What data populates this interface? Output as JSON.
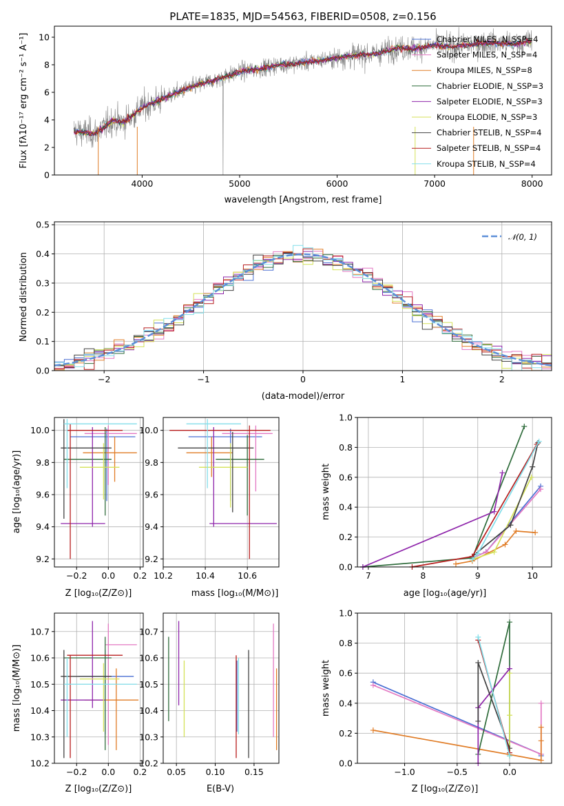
{
  "figure": {
    "title": "PLATE=1835, MJD=54563, FIBERID=0508, z=0.156"
  },
  "colors": {
    "data": "#808080",
    "models": [
      "#4a6fd3",
      "#e377c2",
      "#e07b24",
      "#2e6b3a",
      "#8e24aa",
      "#d4e157",
      "#404040",
      "#b71c1c",
      "#80deea"
    ],
    "normal": "#5b8ed8"
  },
  "chart_data": [
    {
      "id": "spectrum",
      "type": "line",
      "xlabel": "wavelength [Angstrom, rest frame]",
      "ylabel": "Flux [fλ10⁻¹⁷ erg cm⁻² s⁻¹ A⁻¹]",
      "xlim": [
        3100,
        8200
      ],
      "ylim": [
        0,
        10.8
      ],
      "xticks": [
        4000,
        5000,
        6000,
        7000,
        8000
      ],
      "yticks": [
        0,
        2,
        4,
        6,
        8,
        10
      ],
      "grid": false,
      "legend_position": "top-right",
      "continuum": {
        "x": [
          3300,
          3500,
          3600,
          3700,
          3800,
          3900,
          4000,
          4200,
          4400,
          4600,
          4800,
          5000,
          5200,
          5400,
          5600,
          5800,
          6000,
          6200,
          6400,
          6600,
          6800,
          7000,
          7200,
          7400,
          7600,
          7800,
          8000
        ],
        "y": [
          3.2,
          3.0,
          3.4,
          4.0,
          3.8,
          4.3,
          4.9,
          5.5,
          6.1,
          6.6,
          7.0,
          7.5,
          7.7,
          8.0,
          8.1,
          8.3,
          8.5,
          8.7,
          8.8,
          9.2,
          9.2,
          9.4,
          9.3,
          9.5,
          9.6,
          9.5,
          9.7
        ]
      },
      "series": [
        {
          "name": "Chabrier MILES, N_SSP=4"
        },
        {
          "name": "Salpeter MILES, N_SSP=4"
        },
        {
          "name": "Kroupa MILES, N_SSP=8"
        },
        {
          "name": "Chabrier ELODIE, N_SSP=3"
        },
        {
          "name": "Salpeter ELODIE, N_SSP=3"
        },
        {
          "name": "Kroupa ELODIE, N_SSP=3"
        },
        {
          "name": "Chabrier STELIB, N_SSP=4"
        },
        {
          "name": "Salpeter STELIB, N_SSP=4"
        },
        {
          "name": "Kroupa STELIB, N_SSP=4"
        }
      ]
    },
    {
      "id": "residuals",
      "type": "histogram",
      "xlabel": "(data-model)/error",
      "ylabel": "Normed distribution",
      "xlim": [
        -2.5,
        2.5
      ],
      "ylim": [
        0,
        0.51
      ],
      "xticks": [
        -2,
        -1,
        0,
        1,
        2
      ],
      "yticks": [
        0.0,
        0.1,
        0.2,
        0.3,
        0.4,
        0.5
      ],
      "grid": true,
      "legend_position": "top-right",
      "legend_label": "𝒩(0, 1)",
      "bin_width": 0.1
    },
    {
      "id": "age-vs-Z",
      "type": "errorbar",
      "xlabel": "Z [log₁₀(Z/Z⊙)]",
      "ylabel": "age  [log₁₀(age/yr)]",
      "xlim": [
        -0.34,
        0.22
      ],
      "ylim": [
        9.15,
        10.08
      ],
      "xticks": [
        -0.2,
        0.0,
        0.2
      ],
      "yticks": [
        9.2,
        9.4,
        9.6,
        9.8,
        10.0
      ],
      "grid": true,
      "points": [
        {
          "x": -0.01,
          "xerr": [
            0.23,
            0.18
          ],
          "y": 9.96,
          "yerr": [
            0.4,
            0.05
          ]
        },
        {
          "x": 0.0,
          "xerr": [
            0.15,
            0.18
          ],
          "y": 9.98,
          "yerr": [
            0.32,
            0.05
          ]
        },
        {
          "x": 0.04,
          "xerr": [
            0.2,
            0.14
          ],
          "y": 9.86,
          "yerr": [
            0.18,
            0.1
          ]
        },
        {
          "x": -0.02,
          "xerr": [
            0.26,
            0.04
          ],
          "y": 9.82,
          "yerr": [
            0.35,
            0.2
          ]
        },
        {
          "x": -0.1,
          "xerr": [
            0.2,
            0.08
          ],
          "y": 9.42,
          "yerr": [
            0.02,
            0.6
          ]
        },
        {
          "x": -0.03,
          "xerr": [
            0.15,
            0.1
          ],
          "y": 9.77,
          "yerr": [
            0.2,
            0.15
          ]
        },
        {
          "x": -0.28,
          "xerr": [
            0.02,
            0.3
          ],
          "y": 9.89,
          "yerr": [
            0.44,
            0.18
          ]
        },
        {
          "x": -0.24,
          "xerr": [
            0.02,
            0.33
          ],
          "y": 10.0,
          "yerr": [
            0.8,
            0.04
          ]
        },
        {
          "x": -0.26,
          "xerr": [
            0.02,
            0.44
          ],
          "y": 10.04,
          "yerr": [
            0.4,
            0.03
          ]
        }
      ]
    },
    {
      "id": "age-vs-mass",
      "type": "errorbar",
      "xlabel": "mass [log₁₀(M/M⊙)]",
      "ylabel": "",
      "xlim": [
        10.2,
        10.75
      ],
      "ylim": [
        9.15,
        10.08
      ],
      "xticks": [
        10.2,
        10.4,
        10.6
      ],
      "yticks": [
        9.2,
        9.4,
        9.6,
        9.8,
        10.0
      ],
      "grid": true,
      "points": [
        {
          "x": 10.52,
          "xerr": [
            0.2,
            0.15
          ],
          "y": 9.96,
          "yerr": [
            0.4,
            0.05
          ]
        },
        {
          "x": 10.64,
          "xerr": [
            0.16,
            0.08
          ],
          "y": 9.98,
          "yerr": [
            0.36,
            0.05
          ]
        },
        {
          "x": 10.43,
          "xerr": [
            0.12,
            0.1
          ],
          "y": 9.86,
          "yerr": [
            0.15,
            0.1
          ]
        },
        {
          "x": 10.6,
          "xerr": [
            0.15,
            0.08
          ],
          "y": 9.82,
          "yerr": [
            0.35,
            0.15
          ]
        },
        {
          "x": 10.44,
          "xerr": [
            0.02,
            0.3
          ],
          "y": 9.42,
          "yerr": [
            0.02,
            0.6
          ]
        },
        {
          "x": 10.52,
          "xerr": [
            0.15,
            0.08
          ],
          "y": 9.77,
          "yerr": [
            0.25,
            0.15
          ]
        },
        {
          "x": 10.53,
          "xerr": [
            0.26,
            0.1
          ],
          "y": 9.89,
          "yerr": [
            0.4,
            0.1
          ]
        },
        {
          "x": 10.61,
          "xerr": [
            0.38,
            0.1
          ],
          "y": 10.0,
          "yerr": [
            0.8,
            0.03
          ]
        },
        {
          "x": 10.41,
          "xerr": [
            0.1,
            0.16
          ],
          "y": 10.04,
          "yerr": [
            0.4,
            0.03
          ]
        }
      ]
    },
    {
      "id": "weight-vs-age",
      "type": "line",
      "xlabel": "age  [log₁₀(age/yr)]",
      "ylabel": "mass weight",
      "xlim": [
        6.8,
        10.35
      ],
      "ylim": [
        0,
        1.0
      ],
      "xticks": [
        7,
        8,
        9,
        10
      ],
      "yticks": [
        0.0,
        0.2,
        0.4,
        0.6,
        0.8,
        1.0
      ],
      "grid": true,
      "series": [
        {
          "x": [
            8.9,
            9.15,
            10.15
          ],
          "y": [
            0.06,
            0.1,
            0.54
          ]
        },
        {
          "x": [
            8.9,
            9.15,
            10.15
          ],
          "y": [
            0.06,
            0.1,
            0.52
          ]
        },
        {
          "x": [
            8.6,
            8.9,
            9.5,
            9.7,
            10.05
          ],
          "y": [
            0.02,
            0.04,
            0.15,
            0.24,
            0.23
          ]
        },
        {
          "x": [
            6.9,
            8.9,
            9.85
          ],
          "y": [
            0.0,
            0.06,
            0.94
          ]
        },
        {
          "x": [
            6.9,
            9.3,
            9.45
          ],
          "y": [
            0.0,
            0.37,
            0.63
          ]
        },
        {
          "x": [
            8.9,
            9.3,
            9.98
          ],
          "y": [
            0.05,
            0.1,
            0.6
          ]
        },
        {
          "x": [
            8.9,
            9.6,
            10.0,
            10.1
          ],
          "y": [
            0.07,
            0.28,
            0.67,
            0.83
          ]
        },
        {
          "x": [
            7.8,
            8.9,
            10.08
          ],
          "y": [
            0.0,
            0.07,
            0.82
          ]
        },
        {
          "x": [
            8.9,
            9.0,
            10.12
          ],
          "y": [
            0.05,
            0.09,
            0.84
          ]
        }
      ]
    },
    {
      "id": "mass-vs-Z",
      "type": "errorbar",
      "xlabel": "Z [log₁₀(Z/Z⊙)]",
      "ylabel": "mass [log₁₀(M/M⊙)]",
      "xlim": [
        -0.34,
        0.22
      ],
      "ylim": [
        10.2,
        10.77
      ],
      "xticks": [
        -0.2,
        0.0,
        0.2
      ],
      "yticks": [
        10.2,
        10.3,
        10.4,
        10.5,
        10.6,
        10.7
      ],
      "grid": true,
      "points": [
        {
          "x": -0.02,
          "xerr": [
            0.17,
            0.18
          ],
          "y": 10.53,
          "yerr": [
            0.22,
            0.1
          ]
        },
        {
          "x": 0.0,
          "xerr": [
            0.02,
            0.18
          ],
          "y": 10.65,
          "yerr": [
            0.38,
            0.08
          ]
        },
        {
          "x": 0.05,
          "xerr": [
            0.2,
            0.14
          ],
          "y": 10.44,
          "yerr": [
            0.19,
            0.12
          ]
        },
        {
          "x": -0.02,
          "xerr": [
            0.26,
            0.04
          ],
          "y": 10.6,
          "yerr": [
            0.35,
            0.08
          ]
        },
        {
          "x": -0.1,
          "xerr": [
            0.2,
            0.08
          ],
          "y": 10.44,
          "yerr": [
            0.03,
            0.3
          ]
        },
        {
          "x": -0.03,
          "xerr": [
            0.15,
            0.1
          ],
          "y": 10.52,
          "yerr": [
            0.2,
            0.06
          ]
        },
        {
          "x": -0.28,
          "xerr": [
            0.02,
            0.3
          ],
          "y": 10.53,
          "yerr": [
            0.31,
            0.1
          ]
        },
        {
          "x": -0.24,
          "xerr": [
            0.02,
            0.33
          ],
          "y": 10.61,
          "yerr": [
            0.39,
            0.0
          ]
        },
        {
          "x": -0.26,
          "xerr": [
            0.02,
            0.44
          ],
          "y": 10.5,
          "yerr": [
            0.2,
            0.1
          ]
        }
      ]
    },
    {
      "id": "mass-vs-EBV",
      "type": "errorbar",
      "xlabel": "E(B-V)",
      "ylabel": "",
      "xlim": [
        0.033,
        0.182
      ],
      "ylim": [
        10.2,
        10.77
      ],
      "xticks": [
        0.05,
        0.1,
        0.15
      ],
      "yticks": [
        10.2,
        10.3,
        10.4,
        10.5,
        10.6,
        10.7
      ],
      "grid": true,
      "points": [
        {
          "x": 0.128,
          "y": 10.5,
          "yerr": [
            0.18,
            0.09
          ]
        },
        {
          "x": 0.175,
          "y": 10.5,
          "yerr": [
            0.2,
            0.23
          ]
        },
        {
          "x": 0.179,
          "y": 10.4,
          "yerr": [
            0.15,
            0.16
          ]
        },
        {
          "x": 0.04,
          "y": 10.52,
          "yerr": [
            0.16,
            0.16
          ]
        },
        {
          "x": 0.053,
          "y": 10.58,
          "yerr": [
            0.16,
            0.16
          ]
        },
        {
          "x": 0.06,
          "y": 10.45,
          "yerr": [
            0.15,
            0.14
          ]
        },
        {
          "x": 0.143,
          "y": 10.47,
          "yerr": [
            0.25,
            0.16
          ]
        },
        {
          "x": 0.127,
          "y": 10.45,
          "yerr": [
            0.23,
            0.16
          ]
        },
        {
          "x": 0.13,
          "y": 10.45,
          "yerr": [
            0.14,
            0.15
          ]
        }
      ]
    },
    {
      "id": "weight-vs-Z",
      "type": "line",
      "xlabel": "Z [log₁₀(Z/Z⊙)]",
      "ylabel": "mass weight",
      "xlim": [
        -1.45,
        0.4
      ],
      "ylim": [
        0,
        1.0
      ],
      "xticks": [
        -1.0,
        -0.5,
        0.0
      ],
      "yticks": [
        0.0,
        0.2,
        0.4,
        0.6,
        0.8,
        1.0
      ],
      "grid": true,
      "series": [
        {
          "x": [
            -1.3,
            0.3,
            0.3
          ],
          "y": [
            0.54,
            0.06,
            0.05
          ]
        },
        {
          "x": [
            -1.3,
            0.3,
            0.3
          ],
          "y": [
            0.52,
            0.06,
            0.4
          ]
        },
        {
          "x": [
            -1.3,
            0.3,
            0.3,
            0.3
          ],
          "y": [
            0.22,
            0.02,
            0.15,
            0.24
          ]
        },
        {
          "x": [
            -0.3,
            0.0,
            0.0
          ],
          "y": [
            0.06,
            0.94,
            0.05
          ]
        },
        {
          "x": [
            -0.3,
            -0.3,
            0.0
          ],
          "y": [
            0.0,
            0.37,
            0.63
          ]
        },
        {
          "x": [
            0.0,
            0.0,
            0.0
          ],
          "y": [
            0.05,
            0.32,
            0.6
          ]
        },
        {
          "x": [
            -0.3,
            -0.3,
            0.0
          ],
          "y": [
            0.28,
            0.67,
            0.1
          ]
        },
        {
          "x": [
            -0.3,
            0.0
          ],
          "y": [
            0.82,
            0.07
          ]
        },
        {
          "x": [
            -0.3,
            0.0
          ],
          "y": [
            0.84,
            0.05
          ]
        }
      ]
    }
  ]
}
